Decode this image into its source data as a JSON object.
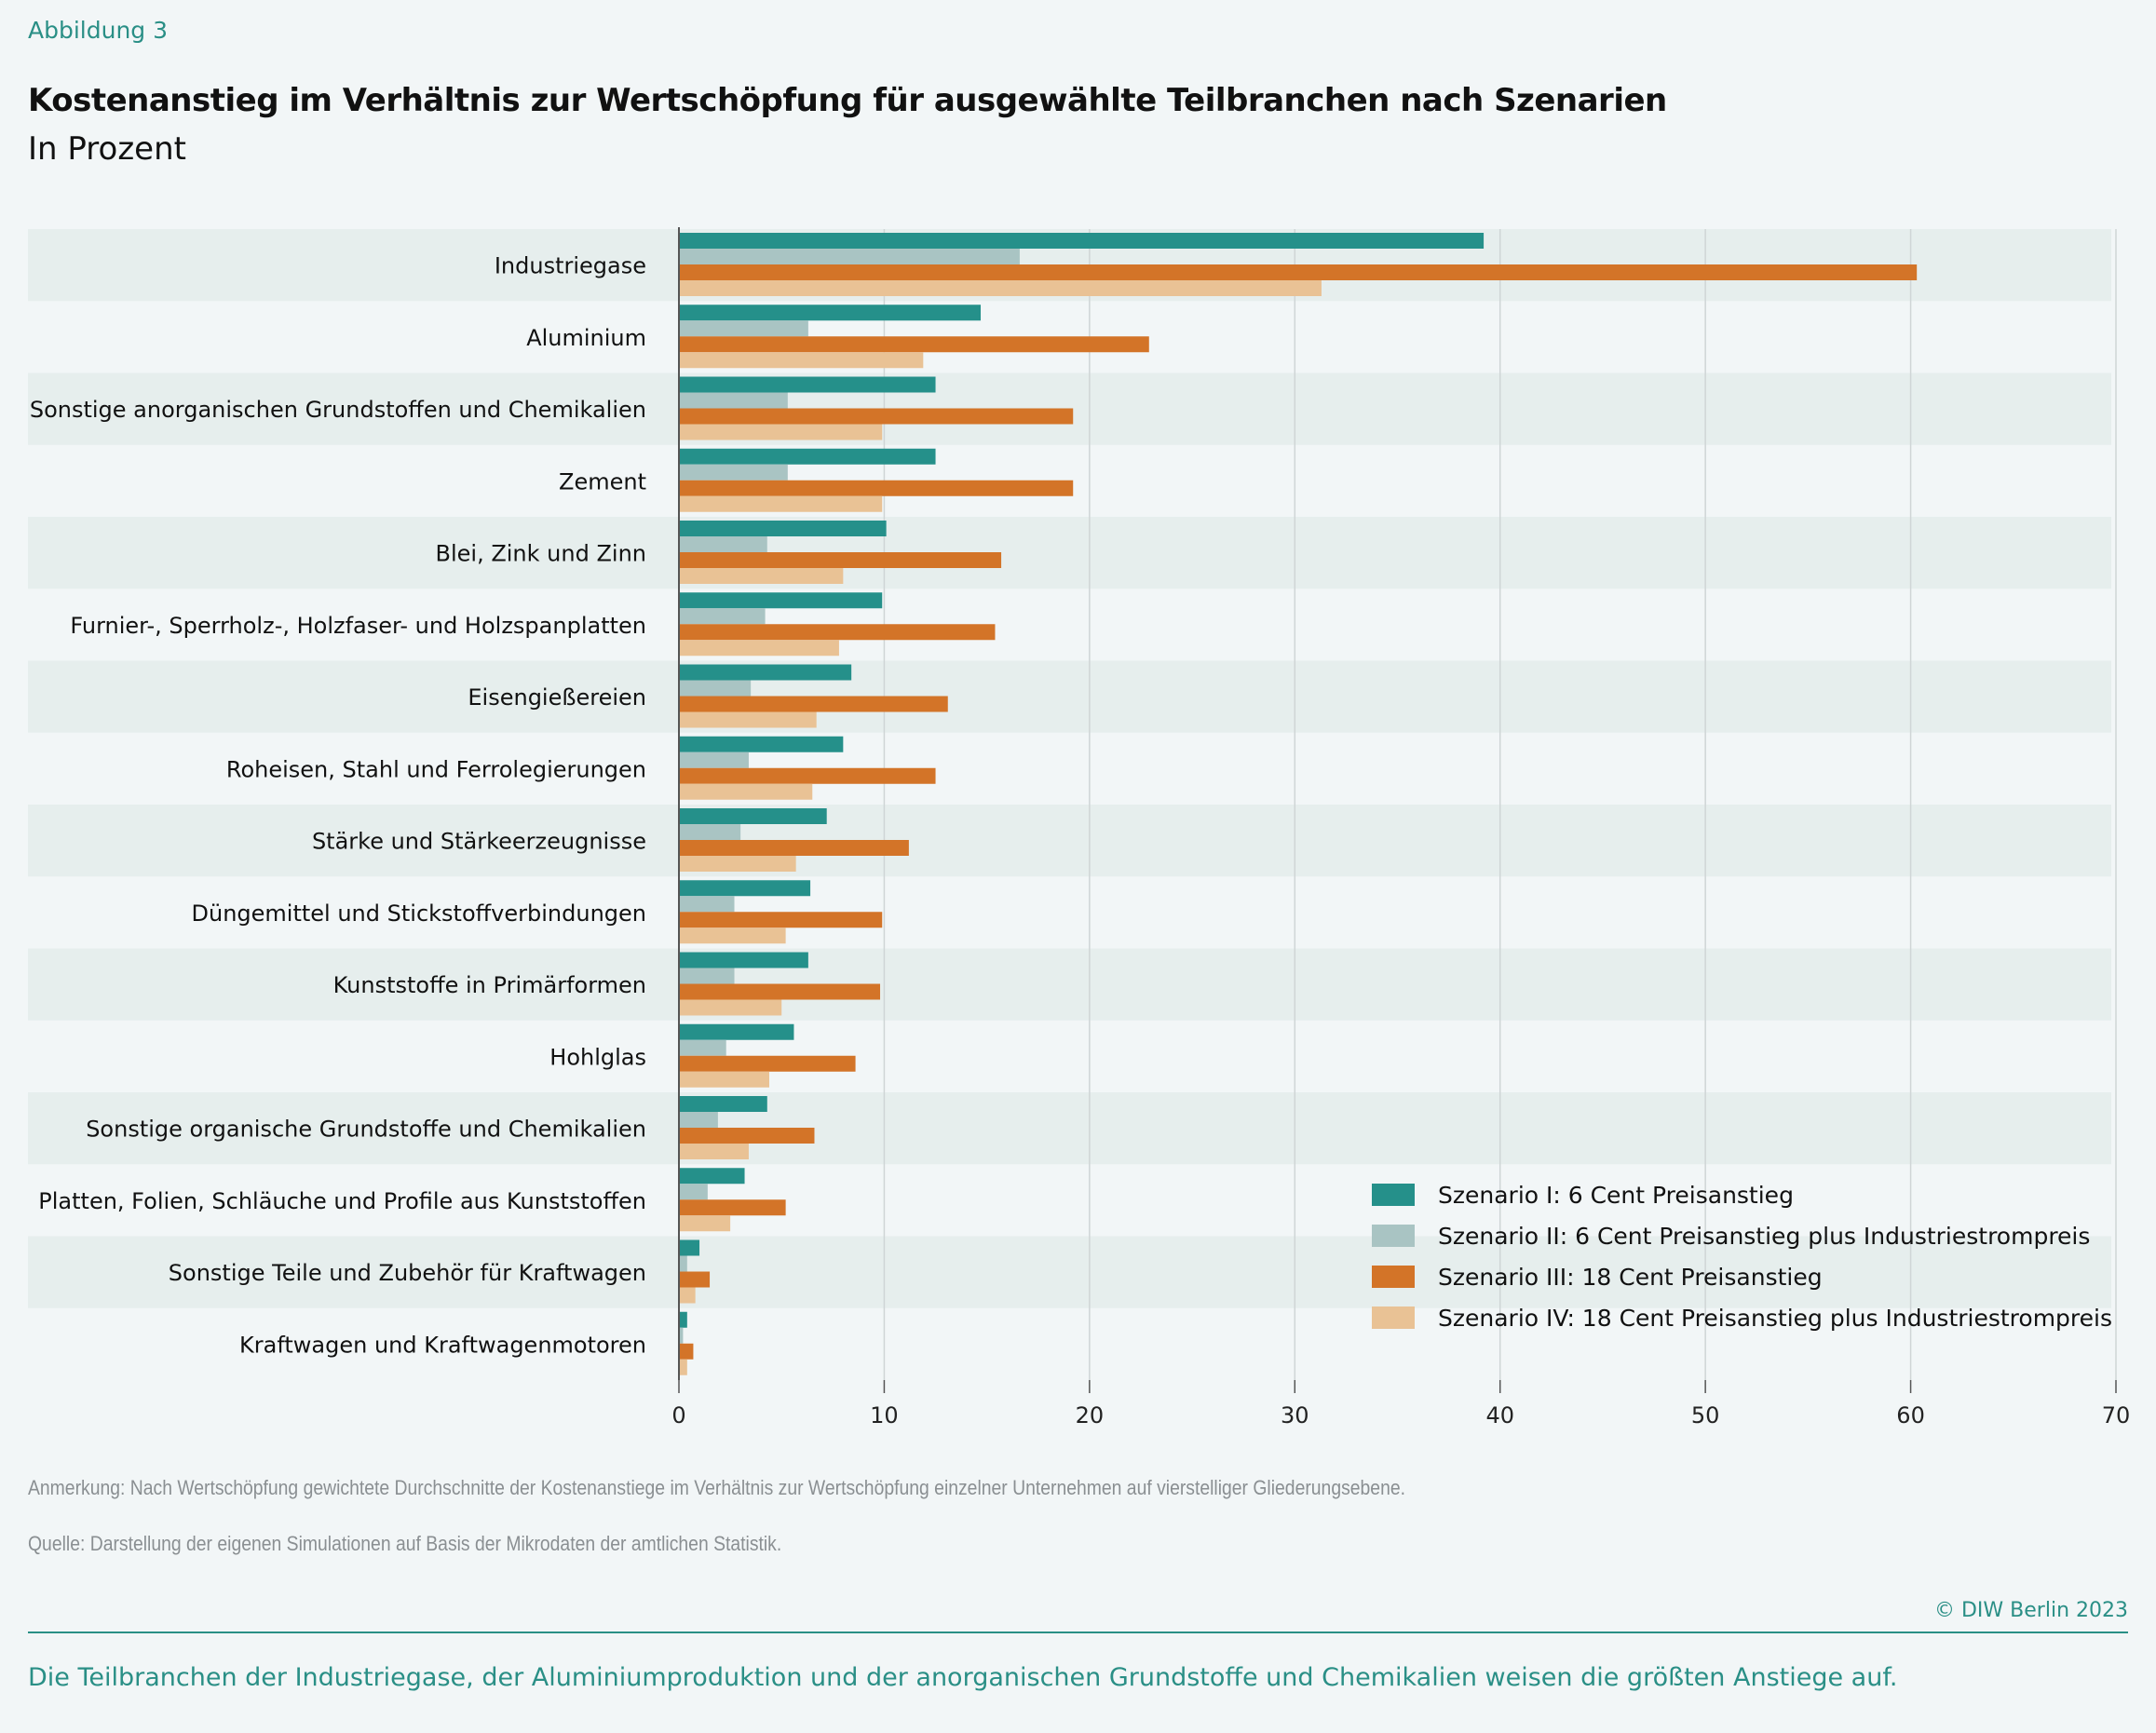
{
  "header": {
    "figure_label": "Abbildung 3",
    "title": "Kostenanstieg im Verhältnis zur Wertschöpfung für ausgewählte Teilbranchen nach Szenarien",
    "subtitle": "In Prozent"
  },
  "chart_data": {
    "type": "bar",
    "orientation": "horizontal",
    "title": "Kostenanstieg im Verhältnis zur Wertschöpfung für ausgewählte Teilbranchen nach Szenarien",
    "ylabel": "",
    "xlabel": "",
    "unit": "In Prozent",
    "xlim": [
      0,
      70
    ],
    "xticks": [
      0,
      10,
      20,
      30,
      40,
      50,
      60,
      70
    ],
    "grid": true,
    "legend_position": "bottom-right",
    "categories": [
      "Industriegase",
      "Aluminium",
      "Sonstige anorganischen Grundstoffen und Chemikalien",
      "Zement",
      "Blei, Zink und Zinn",
      "Furnier-, Sperrholz-, Holzfaser- und Holzspanplatten",
      "Eisengießereien",
      "Roheisen, Stahl und Ferrolegierungen",
      "Stärke und Stärkeerzeugnisse",
      "Düngemittel und Stickstoffverbindungen",
      "Kunststoffe in Primärformen",
      "Hohlglas",
      "Sonstige organische Grundstoffe und Chemikalien",
      "Platten, Folien, Schläuche und Profile aus Kunststoffen",
      "Sonstige Teile und Zubehör für Kraftwagen",
      "Kraftwagen und Kraftwagenmotoren"
    ],
    "series": [
      {
        "name": "Szenario I: 6 Cent Preisanstieg",
        "color": "#25908a",
        "values": [
          39.2,
          14.7,
          12.5,
          12.5,
          10.1,
          9.9,
          8.4,
          8.0,
          7.2,
          6.4,
          6.3,
          5.6,
          4.3,
          3.2,
          1.0,
          0.4
        ]
      },
      {
        "name": "Szenario II: 6 Cent Preisanstieg plus Industriestrompreis",
        "color": "#a9c4c3",
        "values": [
          16.6,
          6.3,
          5.3,
          5.3,
          4.3,
          4.2,
          3.5,
          3.4,
          3.0,
          2.7,
          2.7,
          2.3,
          1.9,
          1.4,
          0.4,
          0.2
        ]
      },
      {
        "name": "Szenario III: 18 Cent Preisanstieg",
        "color": "#d37428",
        "values": [
          60.3,
          22.9,
          19.2,
          19.2,
          15.7,
          15.4,
          13.1,
          12.5,
          11.2,
          9.9,
          9.8,
          8.6,
          6.6,
          5.2,
          1.5,
          0.7
        ]
      },
      {
        "name": "Szenario IV: 18 Cent Preisanstieg plus Industriestrompreis",
        "color": "#e9c295",
        "values": [
          31.3,
          11.9,
          9.9,
          9.9,
          8.0,
          7.8,
          6.7,
          6.5,
          5.7,
          5.2,
          5.0,
          4.4,
          3.4,
          2.5,
          0.8,
          0.4
        ]
      }
    ]
  },
  "footer": {
    "note": "Anmerkung: Nach Wertschöpfung gewichtete Durchschnitte der Kostenanstiege im Verhältnis zur Wertschöpfung einzelner Unternehmen auf vierstelliger Gliederungsebene.",
    "source": "Quelle: Darstellung der eigenen Simulationen auf Basis der Mikrodaten der amtlichen Statistik.",
    "copyright": "© DIW Berlin 2023",
    "takeaway": "Die Teilbranchen der Industriegase, der Aluminiumproduktion und der anorganischen Grundstoffe und Chemikalien weisen die größten Anstiege auf."
  },
  "colors": {
    "accent": "#2a8f86",
    "band": "#e6eeed",
    "background": "#f2f6f7"
  }
}
